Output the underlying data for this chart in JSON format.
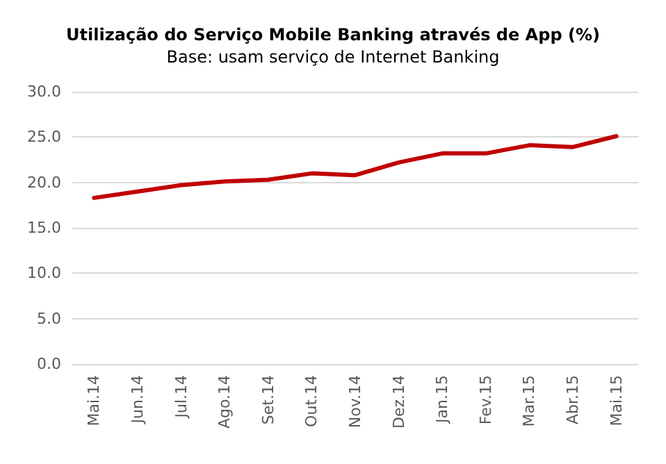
{
  "chart_data": {
    "type": "line",
    "title": "Utilização do Serviço Mobile Banking através de App (%)",
    "subtitle": "Base: usam serviço de Internet Banking",
    "categories": [
      "Mai.14",
      "Jun.14",
      "Jul.14",
      "Ago.14",
      "Set.14",
      "Out.14",
      "Nov.14",
      "Dez.14",
      "Jan.15",
      "Fev.15",
      "Mar.15",
      "Abr.15",
      "Mai.15"
    ],
    "series": [
      {
        "color": "#c00000",
        "values": [
          18.3,
          19.0,
          19.7,
          20.1,
          20.3,
          21.0,
          20.8,
          22.2,
          23.2,
          23.2,
          24.1,
          23.9,
          25.1
        ]
      }
    ],
    "ylim": [
      0,
      30
    ],
    "yticks": [
      {
        "value": 0,
        "label": "0.0"
      },
      {
        "value": 5,
        "label": "5.0"
      },
      {
        "value": 10,
        "label": "10.0"
      },
      {
        "value": 15,
        "label": "15.0"
      },
      {
        "value": 20,
        "label": "20.0"
      },
      {
        "value": 25,
        "label": "25.0"
      },
      {
        "value": 30,
        "label": "30.0"
      }
    ],
    "grid": "y",
    "marker": "none",
    "line_style": "solid"
  }
}
